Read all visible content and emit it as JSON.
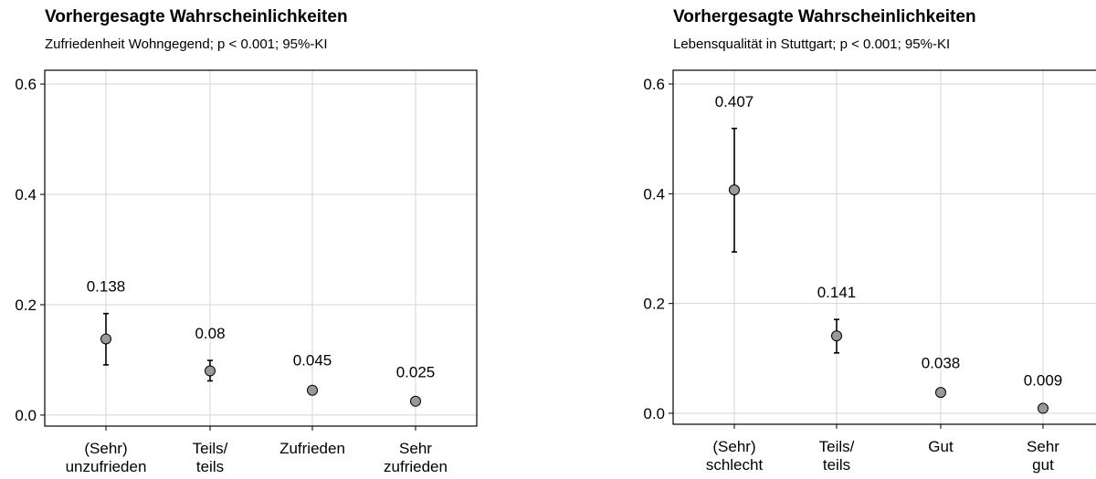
{
  "chart_data": [
    {
      "type": "scatter",
      "title": "Vorhergesagte Wahrscheinlichkeiten",
      "subtitle": "Zufriedenheit Wohngegend; p < 0.001; 95%-KI",
      "categories": [
        [
          "(Sehr)",
          "unzufrieden"
        ],
        [
          "Teils/",
          "teils"
        ],
        [
          "Zufrieden"
        ],
        [
          "Sehr",
          "zufrieden"
        ]
      ],
      "values": [
        0.138,
        0.08,
        0.045,
        0.025
      ],
      "labels": [
        "0.138",
        "0.08",
        "0.045",
        "0.025"
      ],
      "ci_low": [
        0.091,
        0.062,
        0.04,
        0.021
      ],
      "ci_high": [
        0.184,
        0.099,
        0.05,
        0.029
      ],
      "ylim": [
        -0.02,
        0.625
      ],
      "yticks": [
        "0.0",
        "0.2",
        "0.4",
        "0.6"
      ],
      "ytick_values": [
        0.0,
        0.2,
        0.4,
        0.6
      ],
      "grid": true,
      "marker_color": "#999999"
    },
    {
      "type": "scatter",
      "title": "Vorhergesagte Wahrscheinlichkeiten",
      "subtitle": "Lebensqualität in Stuttgart; p < 0.001; 95%-KI",
      "categories": [
        [
          "(Sehr)",
          "schlecht"
        ],
        [
          "Teils/",
          "teils"
        ],
        [
          "Gut"
        ],
        [
          "Sehr",
          "gut"
        ]
      ],
      "values": [
        0.407,
        0.141,
        0.038,
        0.009
      ],
      "labels": [
        "0.407",
        "0.141",
        "0.038",
        "0.009"
      ],
      "ci_low": [
        0.294,
        0.11,
        0.034,
        0.007
      ],
      "ci_high": [
        0.519,
        0.171,
        0.042,
        0.011
      ],
      "ylim": [
        -0.02,
        0.625
      ],
      "yticks": [
        "0.0",
        "0.2",
        "0.4",
        "0.6"
      ],
      "ytick_values": [
        0.0,
        0.2,
        0.4,
        0.6
      ],
      "grid": true,
      "marker_color": "#999999"
    }
  ]
}
